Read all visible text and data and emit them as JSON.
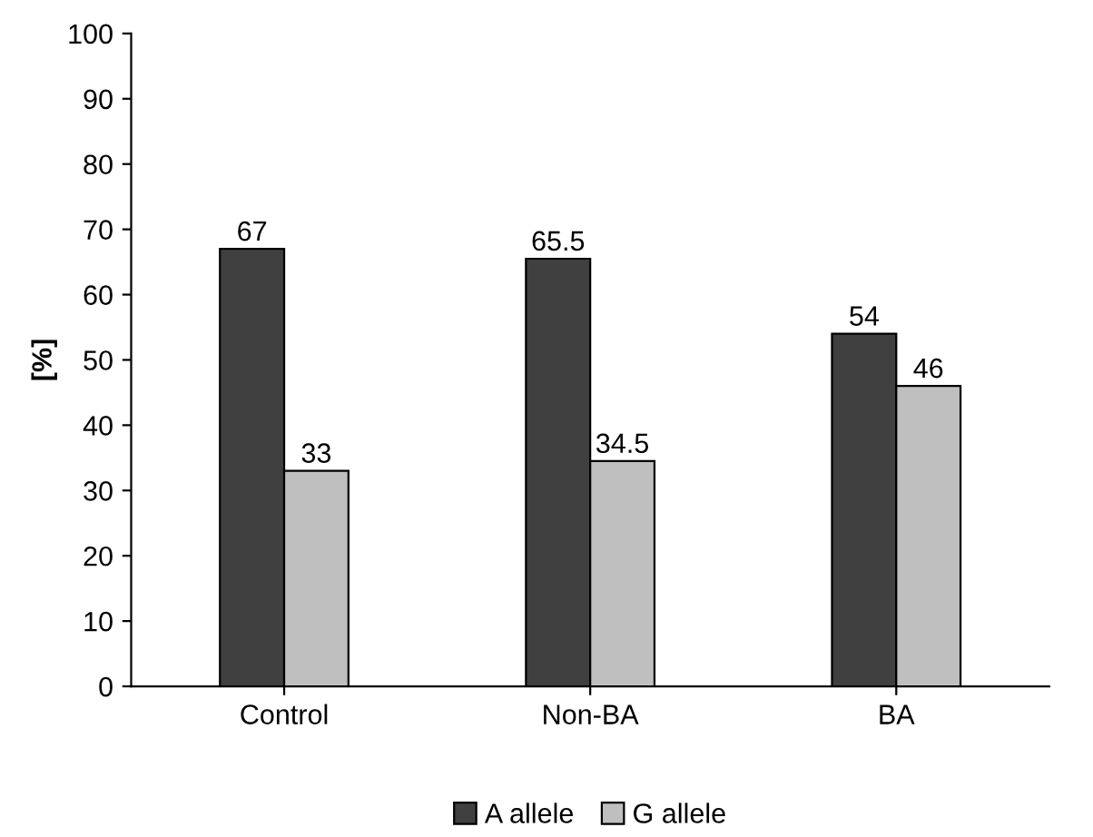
{
  "chart_data": {
    "type": "bar",
    "ylabel": "[%]",
    "categories": [
      "Control",
      "Non-BA",
      "BA"
    ],
    "series": [
      {
        "name": "A allele",
        "color": "#404040",
        "values": [
          67,
          65.5,
          54
        ]
      },
      {
        "name": "G allele",
        "color": "#bfbfbf",
        "values": [
          33,
          34.5,
          46
        ]
      }
    ],
    "ylim": [
      0,
      100
    ],
    "yticks": [
      0,
      10,
      20,
      30,
      40,
      50,
      60,
      70,
      80,
      90,
      100
    ],
    "grid": false,
    "legend": "bottom",
    "data_labels": true
  }
}
